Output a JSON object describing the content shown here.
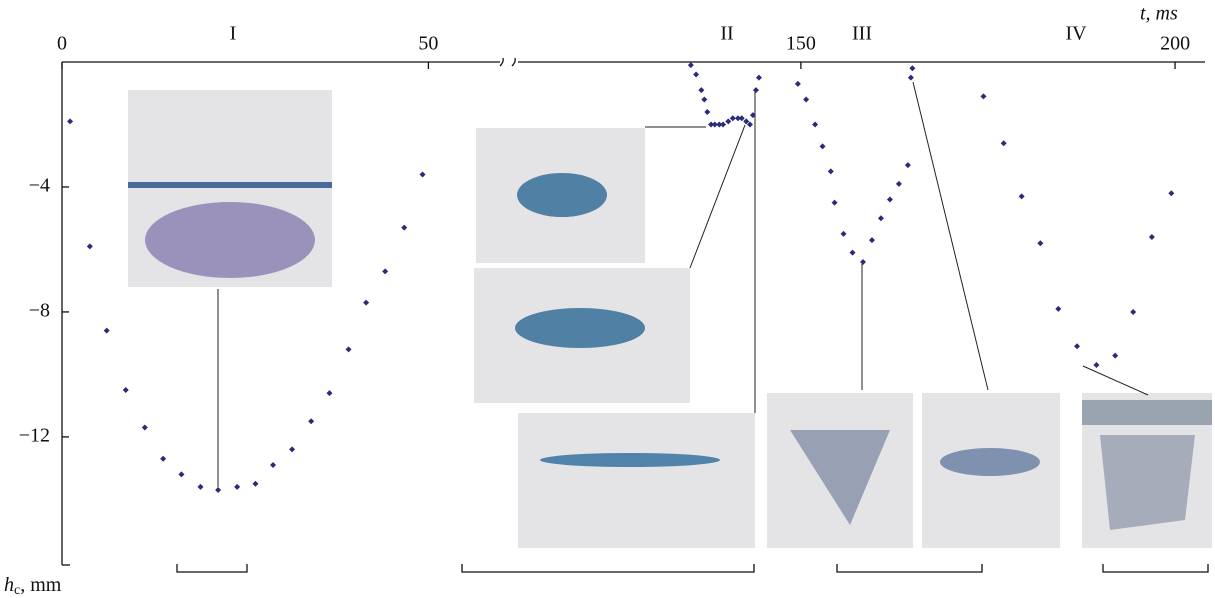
{
  "chart_data": {
    "type": "scatter",
    "x_label": "t, ms",
    "y_label": {
      "symbol": "h",
      "subscript": "c",
      "unit": ", mm"
    },
    "phases": [
      "I",
      "II",
      "III",
      "IV"
    ],
    "xlim": [
      0,
      204
    ],
    "xbreak": [
      61,
      111
    ],
    "ylim": [
      -16.1,
      0
    ],
    "xticks": [
      0,
      50,
      150,
      200
    ],
    "yticks": [
      {
        "value": -4,
        "label": "−4"
      },
      {
        "value": -8,
        "label": "−8"
      },
      {
        "value": -12,
        "label": "−12"
      }
    ],
    "color": "#2b2b7c",
    "x": [
      1.1,
      3.8,
      6.1,
      8.7,
      11.3,
      13.8,
      16.3,
      18.9,
      21.3,
      23.9,
      26.4,
      28.8,
      31.4,
      34.0,
      36.5,
      39.1,
      41.5,
      44.1,
      46.7,
      49.2,
      135.3,
      136.0,
      136.7,
      137.1,
      137.5,
      138.0,
      138.5,
      139.1,
      139.6,
      140.3,
      140.9,
      141.6,
      142.1,
      142.7,
      143.2,
      143.6,
      144.0,
      144.4,
      149.6,
      150.7,
      151.9,
      152.9,
      154.0,
      154.5,
      155.7,
      156.9,
      158.3,
      159.5,
      160.7,
      161.9,
      163.1,
      164.3,
      164.7,
      164.9,
      174.4,
      177.1,
      179.5,
      182.0,
      184.4,
      186.9,
      189.5,
      192.0,
      194.4,
      196.9,
      199.5
    ],
    "y": [
      -1.9,
      -5.9,
      -8.6,
      -10.5,
      -11.7,
      -12.7,
      -13.2,
      -13.6,
      -13.7,
      -13.6,
      -13.5,
      -12.9,
      -12.4,
      -11.5,
      -10.6,
      -9.2,
      -7.7,
      -6.7,
      -5.3,
      -3.6,
      -0.1,
      -0.4,
      -0.9,
      -1.2,
      -1.6,
      -2.0,
      -2.0,
      -2.0,
      -2.0,
      -1.9,
      -1.8,
      -1.8,
      -1.8,
      -1.9,
      -2.0,
      -1.7,
      -0.9,
      -0.5,
      -0.7,
      -1.2,
      -2.0,
      -2.7,
      -3.5,
      -4.5,
      -5.5,
      -6.1,
      -6.4,
      -5.7,
      -5.0,
      -4.4,
      -3.9,
      -3.3,
      -0.5,
      -0.2,
      -1.1,
      -2.6,
      -4.3,
      -5.8,
      -7.9,
      -9.1,
      -9.7,
      -9.4,
      -8.0,
      -5.6,
      -4.2
    ]
  }
}
